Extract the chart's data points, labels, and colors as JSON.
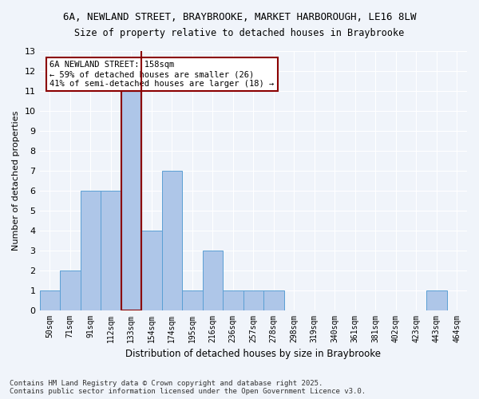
{
  "title_line1": "6A, NEWLAND STREET, BRAYBROOKE, MARKET HARBOROUGH, LE16 8LW",
  "title_line2": "Size of property relative to detached houses in Braybrooke",
  "xlabel": "Distribution of detached houses by size in Braybrooke",
  "ylabel": "Number of detached properties",
  "categories": [
    "50sqm",
    "71sqm",
    "91sqm",
    "112sqm",
    "133sqm",
    "154sqm",
    "174sqm",
    "195sqm",
    "216sqm",
    "236sqm",
    "257sqm",
    "278sqm",
    "298sqm",
    "319sqm",
    "340sqm",
    "361sqm",
    "381sqm",
    "402sqm",
    "423sqm",
    "443sqm",
    "464sqm"
  ],
  "values": [
    1,
    2,
    6,
    6,
    11,
    4,
    7,
    1,
    3,
    1,
    1,
    1,
    0,
    0,
    0,
    0,
    0,
    0,
    0,
    1,
    0
  ],
  "bar_color": "#aec6e8",
  "bar_edge_color": "#5a9fd4",
  "highlight_bar_index": 4,
  "highlight_color": "#aec6e8",
  "highlight_edge_color": "#8b0000",
  "vline_x_index": 4.5,
  "vline_color": "#8b0000",
  "ylim": [
    0,
    13
  ],
  "yticks": [
    0,
    1,
    2,
    3,
    4,
    5,
    6,
    7,
    8,
    9,
    10,
    11,
    12,
    13
  ],
  "annotation_text": "6A NEWLAND STREET: 158sqm\n← 59% of detached houses are smaller (26)\n41% of semi-detached houses are larger (18) →",
  "annotation_box_color": "#ffffff",
  "annotation_box_edge": "#8b0000",
  "footer_line1": "Contains HM Land Registry data © Crown copyright and database right 2025.",
  "footer_line2": "Contains public sector information licensed under the Open Government Licence v3.0.",
  "background_color": "#f0f4fa",
  "grid_color": "#ffffff"
}
